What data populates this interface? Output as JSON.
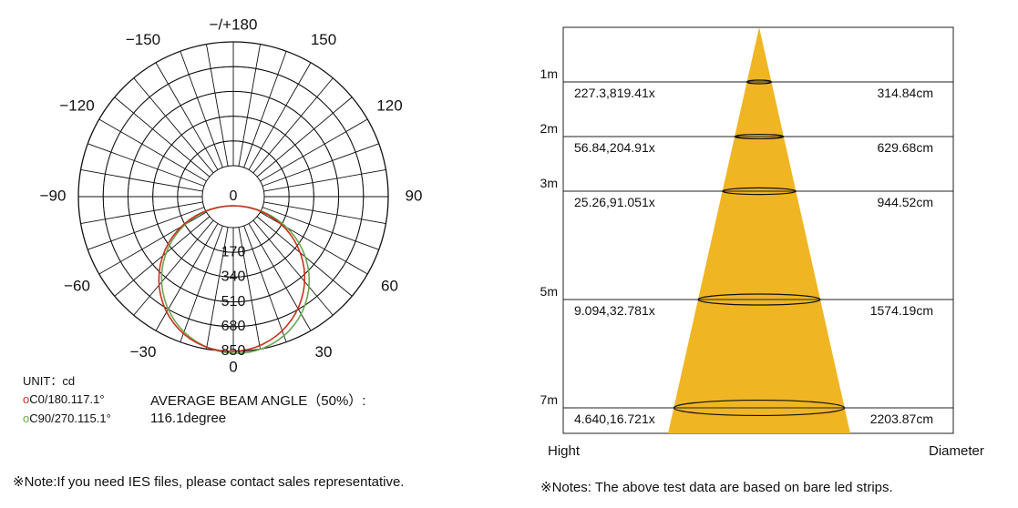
{
  "polar": {
    "type": "polar",
    "angle_labels": [
      {
        "angle": 180,
        "text": "−/+180"
      },
      {
        "angle": -150,
        "text": "−150"
      },
      {
        "angle": 150,
        "text": "150"
      },
      {
        "angle": -120,
        "text": "−120"
      },
      {
        "angle": 120,
        "text": "120"
      },
      {
        "angle": -90,
        "text": "−90"
      },
      {
        "angle": 90,
        "text": "90"
      },
      {
        "angle": -60,
        "text": "−60"
      },
      {
        "angle": 60,
        "text": "60"
      },
      {
        "angle": -30,
        "text": "−30"
      },
      {
        "angle": 30,
        "text": "30"
      },
      {
        "angle": 0,
        "text": "0"
      }
    ],
    "radial_labels": [
      "0",
      "170",
      "340",
      "510",
      "680",
      "850"
    ],
    "radial_max": 850,
    "unit_label": "UNIT：cd",
    "legend": [
      {
        "marker": "o",
        "text": "C0/180.117.1°",
        "color": "#c8321e"
      },
      {
        "marker": "o",
        "text": "C90/270.115.1°",
        "color": "#6aa84f"
      }
    ],
    "beam_angle_label": "AVERAGE BEAM ANGLE（50%）:",
    "beam_angle_value": "116.1degree",
    "note": "※Note:If you need IES files, please contact sales representative."
  },
  "chart_data": {
    "type": "table",
    "title": "",
    "xlabel": "Hight",
    "ylabel": "Diameter",
    "rows": [
      {
        "height": "1m",
        "illuminance": "227.3,819.41x",
        "diameter": "314.84cm"
      },
      {
        "height": "2m",
        "illuminance": "56.84,204.91x",
        "diameter": "629.68cm"
      },
      {
        "height": "3m",
        "illuminance": "25.26,91.051x",
        "diameter": "944.52cm"
      },
      {
        "height": "5m",
        "illuminance": "9.094,32.781x",
        "diameter": "1574.19cm"
      },
      {
        "height": "7m",
        "illuminance": "4.640,16.721x",
        "diameter": "2203.87cm"
      }
    ],
    "cone_color": "#f0b523",
    "note": "※Notes: The above test data are based on bare led strips."
  }
}
